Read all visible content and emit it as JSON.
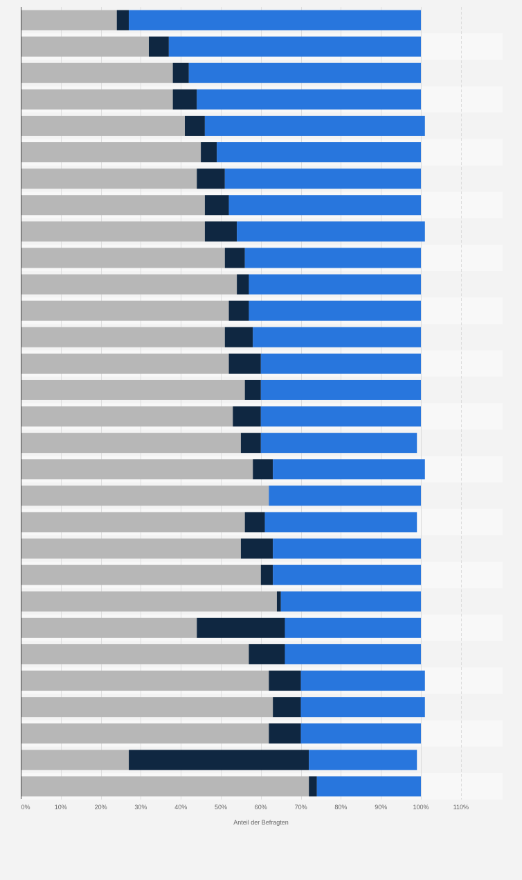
{
  "chart_data": {
    "type": "bar",
    "orientation": "horizontal",
    "stacked": true,
    "title": "",
    "xlabel": "Anteil der Befragten",
    "ylabel": "",
    "xlim": [
      0,
      120
    ],
    "x_ticks": [
      "0%",
      "10%",
      "20%",
      "30%",
      "40%",
      "50%",
      "60%",
      "70%",
      "80%",
      "90%",
      "100%",
      "110%"
    ],
    "grid": true,
    "legend": "none",
    "category_labels_visible": false,
    "rows": 30,
    "series": [
      {
        "color": "#b7b7b7",
        "values": [
          24,
          32,
          38,
          38,
          41,
          45,
          44,
          46,
          46,
          51,
          54,
          52,
          51,
          52,
          56,
          53,
          55,
          58,
          62,
          56,
          55,
          60,
          64,
          44,
          57,
          62,
          63,
          62,
          27,
          72
        ]
      },
      {
        "color": "#0f2741",
        "values": [
          3,
          5,
          4,
          6,
          5,
          4,
          7,
          6,
          8,
          5,
          3,
          5,
          7,
          8,
          4,
          7,
          5,
          5,
          0,
          5,
          8,
          3,
          1,
          22,
          9,
          8,
          7,
          8,
          45,
          2
        ]
      },
      {
        "color": "#2876dd",
        "values": [
          73,
          63,
          58,
          56,
          55,
          51,
          49,
          48,
          47,
          44,
          43,
          43,
          42,
          40,
          40,
          40,
          39,
          38,
          38,
          38,
          37,
          37,
          35,
          34,
          34,
          31,
          31,
          30,
          27,
          26
        ]
      }
    ]
  }
}
